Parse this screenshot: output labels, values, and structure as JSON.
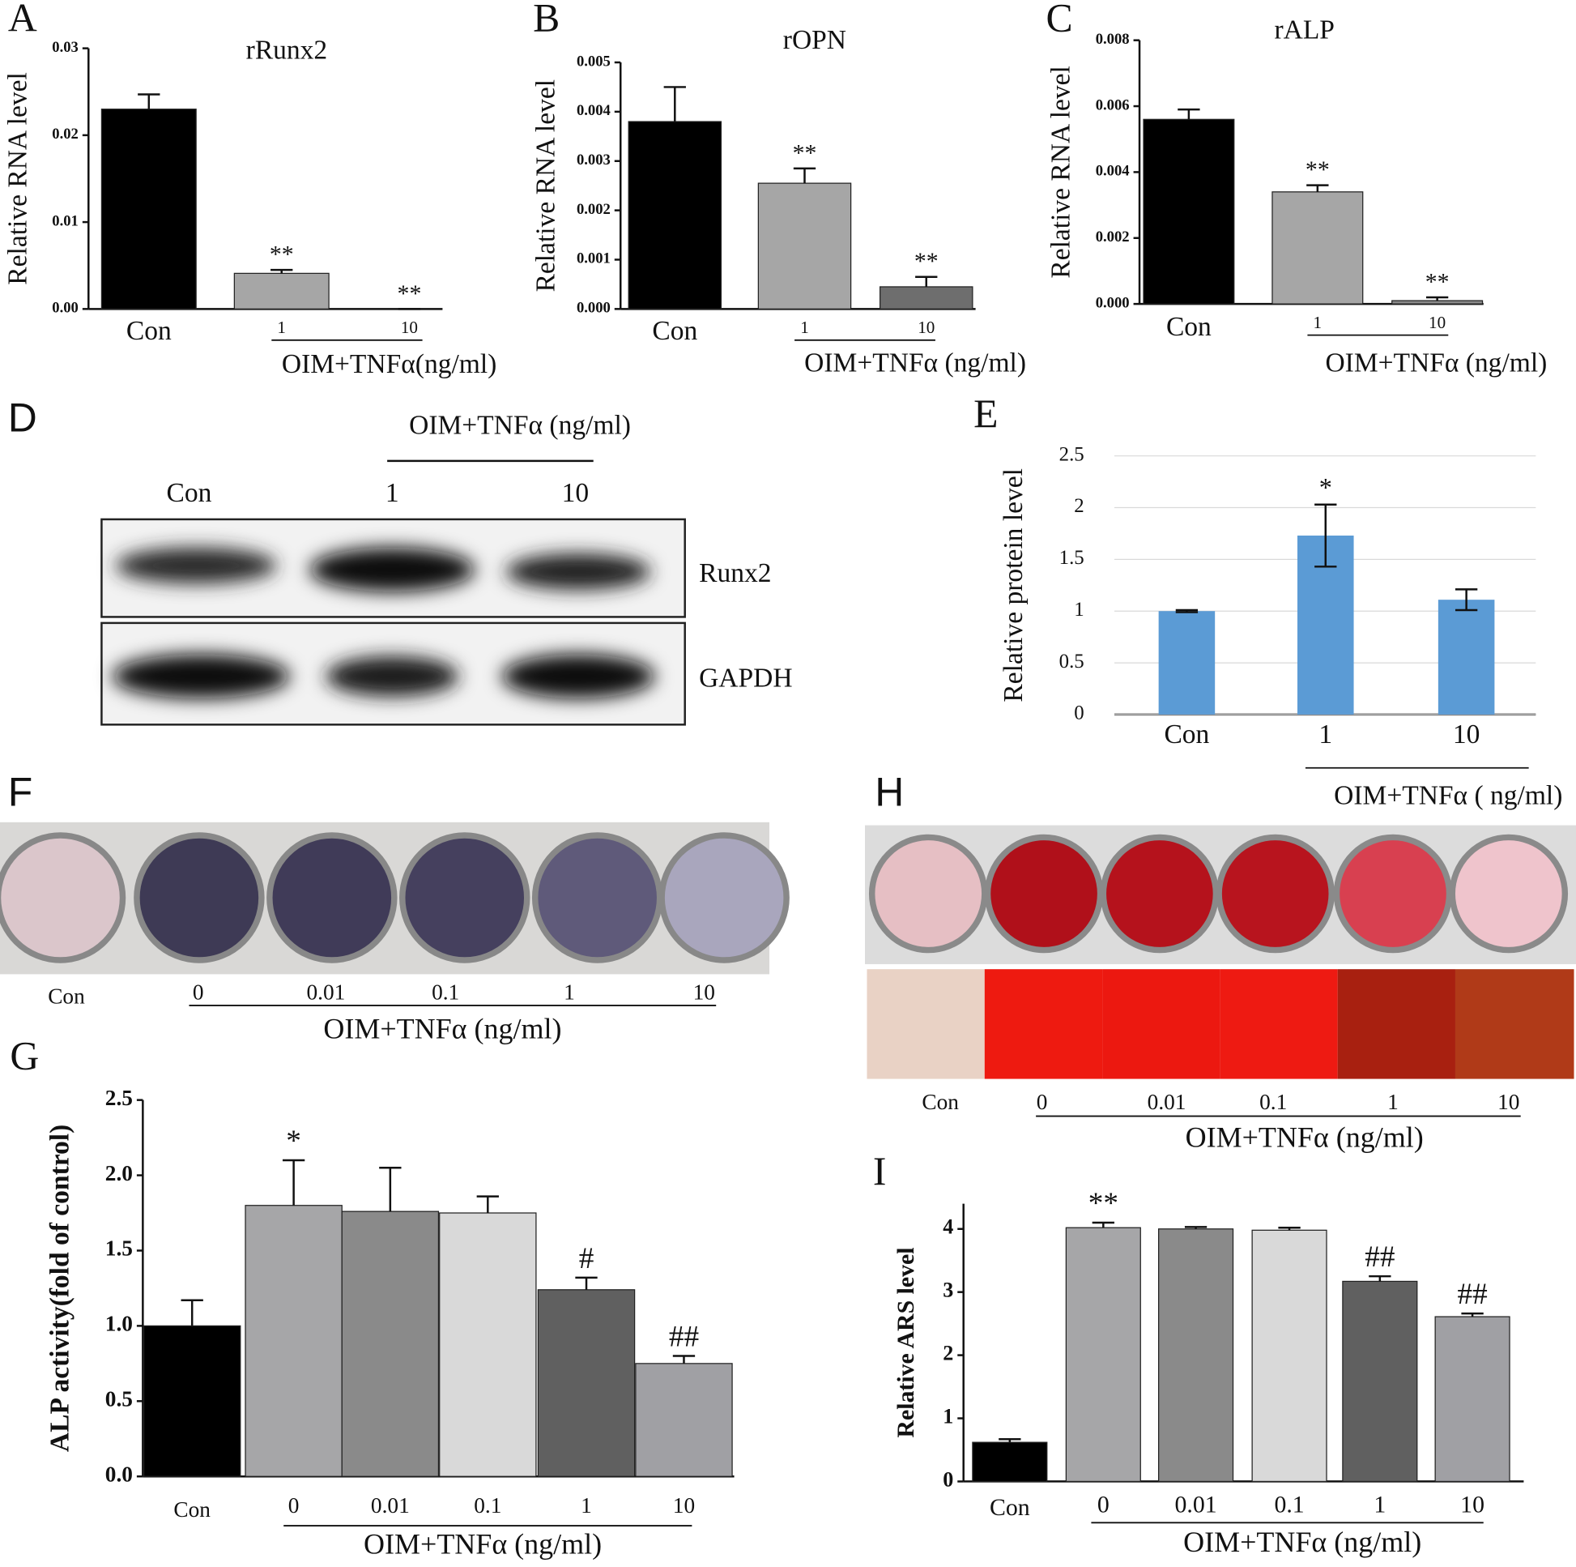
{
  "chart_data": [
    {
      "type": "bar",
      "panel": "A",
      "title": "rRunx2",
      "ylabel": "Relative RNA level",
      "categories": [
        "Con",
        "1",
        "10"
      ],
      "values": [
        0.023,
        0.0041,
        0
      ],
      "errors": [
        0.0017,
        0.0004,
        0
      ],
      "annotations": [
        null,
        "**",
        "**"
      ],
      "colors": [
        "#000000",
        "#a6a6a6",
        "#8a8a8a"
      ],
      "error_bars": "upper",
      "ylim": [
        0,
        0.03
      ],
      "yticks": [
        {
          "value": 0,
          "label": "0.00"
        },
        0.01,
        0.02,
        0.03
      ],
      "group_label": "OIM+TNFα(ng/ml)"
    },
    {
      "type": "bar",
      "panel": "B",
      "title": "rOPN",
      "ylabel": "Relative RNA level",
      "categories": [
        "Con",
        "1",
        "10"
      ],
      "values": [
        0.0038,
        0.00255,
        0.00045
      ],
      "errors": [
        0.0007,
        0.0003,
        0.0002
      ],
      "annotations": [
        null,
        "**",
        "**"
      ],
      "colors": [
        "#000000",
        "#a6a6a6",
        "#6e6e6e"
      ],
      "error_bars": "upper",
      "ylim": [
        0,
        0.005
      ],
      "yticks": [
        {
          "value": 0,
          "label": "0.000"
        },
        0.001,
        0.002,
        0.003,
        0.004,
        0.005
      ],
      "group_label": "OIM+TNFα (ng/ml)"
    },
    {
      "type": "bar",
      "panel": "C",
      "title": "rALP",
      "ylabel": "Relative RNA level",
      "categories": [
        "Con",
        "1",
        "10"
      ],
      "values": [
        0.0056,
        0.0034,
        0.0001
      ],
      "errors": [
        0.0003,
        0.0002,
        0.0001
      ],
      "annotations": [
        null,
        "**",
        "**"
      ],
      "colors": [
        "#000000",
        "#a6a6a6",
        "#8a8a8a"
      ],
      "error_bars": "upper",
      "ylim": [
        0,
        0.008
      ],
      "yticks": [
        {
          "value": 0,
          "label": "0.000"
        },
        0.002,
        0.004,
        0.006,
        0.008
      ],
      "group_label": "OIM+TNFα (ng/ml)"
    },
    {
      "type": "bar",
      "panel": "E",
      "ylabel": "Relative protein level",
      "categories": [
        "Con",
        "1",
        "10"
      ],
      "values": [
        1.0,
        1.73,
        1.11
      ],
      "errors": [
        0.01,
        0.3,
        0.1
      ],
      "annotations": [
        null,
        "*",
        null
      ],
      "colors": [
        "#5b9bd5",
        "#5b9bd5",
        "#5b9bd5"
      ],
      "error_bars": "both",
      "grid": true,
      "ylim": [
        0,
        2.5
      ],
      "yticks": [
        0,
        0.5,
        1,
        1.5,
        2,
        2.5
      ],
      "group_label": "OIM+TNFα ( ng/ml)"
    },
    {
      "type": "bar",
      "panel": "G",
      "ylabel": "ALP activity(fold of control)",
      "categories": [
        "Con",
        "0",
        "0.01",
        "0.1",
        "1",
        "10"
      ],
      "values": [
        1.0,
        1.8,
        1.76,
        1.75,
        1.24,
        0.75
      ],
      "errors": [
        0.17,
        0.3,
        0.29,
        0.11,
        0.08,
        0.05
      ],
      "annotations": [
        null,
        "*",
        null,
        null,
        "#",
        "##"
      ],
      "colors": [
        "#000000",
        "#a6a6a8",
        "#8a8a8a",
        "#d9d9d9",
        "#606060",
        "#a0a0a4"
      ],
      "error_bars": "upper",
      "ylim": [
        0,
        2.5
      ],
      "yticks": [
        {
          "value": 0,
          "label": "0.0"
        },
        0.5,
        {
          "value": 1,
          "label": "1.0"
        },
        1.5,
        {
          "value": 2,
          "label": "2.0"
        },
        2.5
      ],
      "group_label": "OIM+TNFα (ng/ml)"
    },
    {
      "type": "bar",
      "panel": "I",
      "ylabel": "Relative ARS level",
      "categories": [
        "Con",
        "0",
        "0.01",
        "0.1",
        "1",
        "10"
      ],
      "values": [
        0.62,
        4.02,
        4.0,
        3.98,
        3.17,
        2.61
      ],
      "errors": [
        0.05,
        0.08,
        0.03,
        0.04,
        0.08,
        0.05
      ],
      "annotations": [
        null,
        "**",
        null,
        null,
        "##",
        "##"
      ],
      "colors": [
        "#000000",
        "#a6a6a8",
        "#8a8a8a",
        "#d9d9d9",
        "#606060",
        "#a0a0a4"
      ],
      "error_bars": "upper",
      "ylim": [
        0,
        4.4
      ],
      "yticks": [
        0,
        1,
        2,
        3,
        4
      ],
      "group_label": "OIM+TNFα (ng/ml)"
    }
  ],
  "blot": {
    "panel": "D",
    "header": "OIM+TNFα (ng/ml)",
    "lanes": [
      "Con",
      "1",
      "10"
    ],
    "bands": [
      "Runx2",
      "GAPDH"
    ]
  },
  "plates": [
    {
      "panel": "F",
      "labels": [
        "Con",
        "0",
        "0.01",
        "0.1",
        "1",
        "10"
      ],
      "group_label": "OIM+TNFα (ng/ml)"
    },
    {
      "panel": "H",
      "labels": [
        "Con",
        "0",
        "0.01",
        "0.1",
        "1",
        "10"
      ],
      "group_label": "OIM+TNFα (ng/ml)"
    }
  ]
}
